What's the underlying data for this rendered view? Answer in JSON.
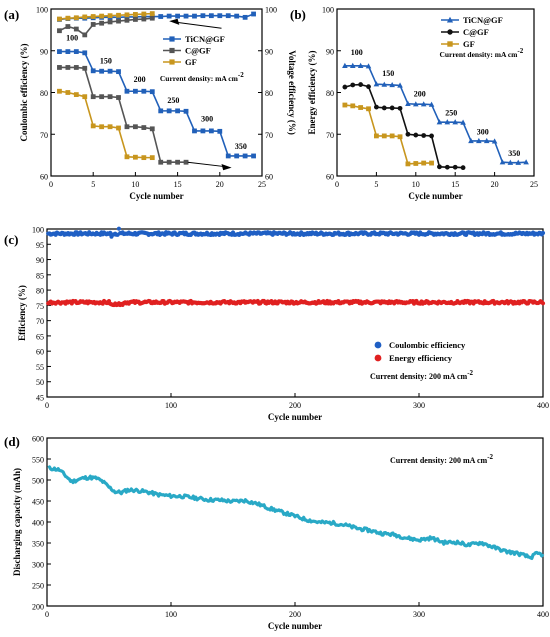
{
  "chart_data": [
    {
      "panel": "(a)",
      "type": "line",
      "xlabel": "Cycle number",
      "ylabel": "Coulombic efficiency (%)",
      "y2label": "Voltage efficiency (%)",
      "xlim": [
        0,
        25
      ],
      "ylim": [
        60,
        100
      ],
      "y2lim": [
        60,
        100
      ],
      "xticks": [
        0,
        5,
        10,
        15,
        20,
        25
      ],
      "yticks": [
        60,
        70,
        80,
        90,
        100
      ],
      "y2ticks": [
        60,
        70,
        80,
        90,
        100
      ],
      "annotation": "Current density: mA cm⁻²",
      "step_labels": [
        {
          "text": "100",
          "x": 2.5,
          "y": 92.5
        },
        {
          "text": "150",
          "x": 6.5,
          "y": 87.0
        },
        {
          "text": "200",
          "x": 10.5,
          "y": 82.5
        },
        {
          "text": "250",
          "x": 14.5,
          "y": 77.5
        },
        {
          "text": "300",
          "x": 18.5,
          "y": 73.0
        },
        {
          "text": "350",
          "x": 22.5,
          "y": 66.5
        }
      ],
      "legend": "upper-right",
      "series": [
        {
          "name": "TiCN@GF",
          "color": "#2160b9",
          "marker": "square",
          "axis": "y2",
          "x": [
            1,
            2,
            3,
            4,
            5,
            6,
            7,
            8,
            9,
            10,
            11,
            12,
            13,
            14,
            15,
            16,
            17,
            18,
            19,
            20,
            21,
            22,
            23,
            24
          ],
          "values": [
            89.8,
            89.8,
            89.8,
            89.5,
            85.2,
            85.1,
            85.1,
            85.0,
            80.3,
            80.3,
            80.3,
            80.2,
            75.6,
            75.6,
            75.6,
            75.5,
            70.8,
            70.8,
            70.8,
            70.7,
            64.8,
            64.8,
            64.8,
            64.8
          ]
        },
        {
          "name": "C@GF",
          "color": "#555555",
          "marker": "square",
          "axis": "y2",
          "x": [
            1,
            2,
            3,
            4,
            5,
            6,
            7,
            8,
            9,
            10,
            11,
            12,
            13,
            14,
            15,
            16
          ],
          "values": [
            86.0,
            86.0,
            86.0,
            85.8,
            79.0,
            79.0,
            79.0,
            78.8,
            71.8,
            71.8,
            71.6,
            71.3,
            63.3,
            63.3,
            63.3,
            63.3
          ]
        },
        {
          "name": "GF",
          "color": "#c8961e",
          "marker": "square",
          "axis": "y2",
          "x": [
            1,
            2,
            3,
            4,
            5,
            6,
            7,
            8,
            9,
            10,
            11,
            12
          ],
          "values": [
            80.3,
            80.0,
            79.5,
            79.0,
            72.0,
            71.8,
            71.8,
            71.5,
            64.6,
            64.5,
            64.4,
            64.4
          ]
        },
        {
          "name": "TiCN@GF",
          "color": "#2160b9",
          "marker": "square",
          "axis": "y",
          "legend": false,
          "x": [
            1,
            2,
            3,
            4,
            5,
            6,
            7,
            8,
            9,
            10,
            11,
            12,
            13,
            14,
            15,
            16,
            17,
            18,
            19,
            20,
            21,
            22,
            23,
            24
          ],
          "values": [
            97.5,
            97.7,
            97.8,
            97.8,
            97.9,
            98.0,
            98.0,
            98.0,
            98.1,
            98.1,
            98.2,
            98.2,
            98.2,
            98.3,
            98.3,
            98.3,
            98.3,
            98.4,
            98.4,
            98.4,
            98.4,
            98.3,
            98.0,
            98.8
          ]
        },
        {
          "name": "C@GF",
          "color": "#555555",
          "marker": "square",
          "axis": "y",
          "legend": false,
          "x": [
            1,
            2,
            3,
            4,
            5,
            6,
            7,
            8,
            9,
            10,
            11,
            12
          ],
          "values": [
            94.8,
            95.8,
            95.2,
            93.8,
            96.3,
            96.6,
            96.9,
            97.1,
            97.3,
            97.5,
            97.6,
            97.8
          ]
        },
        {
          "name": "GF",
          "color": "#c8961e",
          "marker": "square",
          "axis": "y",
          "legend": false,
          "x": [
            1,
            2,
            3,
            4,
            5,
            6,
            7,
            8,
            9,
            10,
            11,
            12
          ],
          "values": [
            97.6,
            97.8,
            97.9,
            98.1,
            98.2,
            98.3,
            98.4,
            98.5,
            98.6,
            98.7,
            98.8,
            98.9
          ]
        }
      ]
    },
    {
      "panel": "(b)",
      "type": "line",
      "xlabel": "Cycle number",
      "ylabel": "Energy efficiency (%)",
      "xlim": [
        0,
        25
      ],
      "ylim": [
        60,
        100
      ],
      "xticks": [
        0,
        5,
        10,
        15,
        20,
        25
      ],
      "yticks": [
        60,
        70,
        80,
        90,
        100
      ],
      "annotation": "Current density: mA cm⁻²",
      "step_labels": [
        {
          "text": "100",
          "x": 2.5,
          "y": 89.0
        },
        {
          "text": "150",
          "x": 6.5,
          "y": 84.0
        },
        {
          "text": "200",
          "x": 10.5,
          "y": 79.0
        },
        {
          "text": "250",
          "x": 14.5,
          "y": 74.5
        },
        {
          "text": "300",
          "x": 18.5,
          "y": 70.0
        },
        {
          "text": "350",
          "x": 22.5,
          "y": 64.8
        }
      ],
      "legend": "upper-right",
      "series": [
        {
          "name": "TiCN@GF",
          "color": "#2160b9",
          "marker": "triangle",
          "x": [
            1,
            2,
            3,
            4,
            5,
            6,
            7,
            8,
            9,
            10,
            11,
            12,
            13,
            14,
            15,
            16,
            17,
            18,
            19,
            20,
            21,
            22,
            23,
            24
          ],
          "values": [
            86.4,
            86.4,
            86.4,
            86.3,
            82.0,
            81.9,
            81.8,
            81.7,
            77.3,
            77.2,
            77.2,
            77.1,
            72.9,
            72.9,
            72.9,
            72.8,
            68.4,
            68.4,
            68.4,
            68.3,
            63.3,
            63.2,
            63.2,
            63.3
          ]
        },
        {
          "name": "C@GF",
          "color": "#111111",
          "marker": "circle",
          "x": [
            1,
            2,
            3,
            4,
            5,
            6,
            7,
            8,
            9,
            10,
            11,
            12,
            13,
            14,
            15,
            16
          ],
          "values": [
            81.3,
            81.8,
            81.9,
            81.4,
            76.5,
            76.3,
            76.3,
            76.2,
            70.0,
            69.8,
            69.7,
            69.6,
            62.2,
            62.1,
            62.1,
            62.0
          ]
        },
        {
          "name": "GF",
          "color": "#c8961e",
          "marker": "square",
          "x": [
            1,
            2,
            3,
            4,
            5,
            6,
            7,
            8,
            9,
            10,
            11,
            12
          ],
          "values": [
            77.0,
            76.8,
            76.4,
            76.1,
            69.6,
            69.6,
            69.6,
            69.4,
            62.9,
            63.0,
            63.1,
            63.1
          ]
        }
      ]
    },
    {
      "panel": "(c)",
      "type": "scatter",
      "xlabel": "Cycle number",
      "ylabel": "Efficiency (%)",
      "xlim": [
        0,
        400
      ],
      "ylim": [
        45,
        100
      ],
      "xticks": [
        0,
        100,
        200,
        300,
        400
      ],
      "yticks": [
        45,
        50,
        55,
        60,
        65,
        70,
        75,
        80,
        85,
        90,
        95,
        100
      ],
      "annotation": "Current density: 200 mA cm⁻²",
      "legend": "center-right",
      "series": [
        {
          "name": "Coulombic efficiency",
          "color": "#1f5fc4",
          "mean": 98.5,
          "points": 400
        },
        {
          "name": "Energy efficiency",
          "color": "#e02020",
          "mean": 76.0,
          "points": 400
        }
      ]
    },
    {
      "panel": "(d)",
      "type": "line",
      "xlabel": "Cycle number",
      "ylabel": "Discharging capacity (mAh)",
      "xlim": [
        0,
        400
      ],
      "ylim": [
        200,
        600
      ],
      "xticks": [
        0,
        100,
        200,
        300,
        400
      ],
      "yticks": [
        200,
        250,
        300,
        350,
        400,
        450,
        500,
        550,
        600
      ],
      "annotation": "Current density: 200 mA cm⁻²",
      "series": [
        {
          "name": "",
          "color": "#29a9c6",
          "x": [
            1,
            5,
            10,
            15,
            20,
            25,
            30,
            35,
            40,
            45,
            50,
            55,
            60,
            65,
            70,
            80,
            90,
            100,
            110,
            120,
            130,
            140,
            150,
            160,
            170,
            180,
            190,
            200,
            210,
            220,
            230,
            240,
            250,
            260,
            270,
            280,
            290,
            300,
            310,
            320,
            330,
            340,
            350,
            360,
            370,
            380,
            390,
            395,
            400
          ],
          "values": [
            528,
            527,
            524,
            510,
            496,
            501,
            505,
            506,
            504,
            496,
            483,
            472,
            470,
            476,
            476,
            472,
            465,
            462,
            461,
            457,
            453,
            452,
            449,
            451,
            443,
            432,
            423,
            414,
            405,
            399,
            398,
            393,
            385,
            380,
            373,
            370,
            362,
            357,
            362,
            351,
            352,
            345,
            351,
            340,
            330,
            325,
            315,
            325,
            322
          ]
        }
      ]
    }
  ]
}
